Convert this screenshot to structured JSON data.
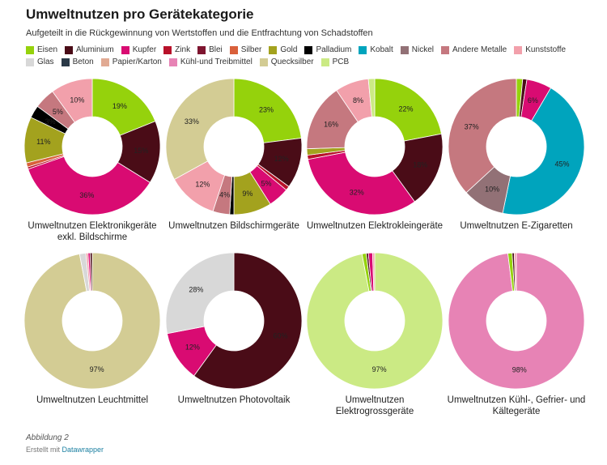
{
  "title": "Umweltnutzen pro Gerätekategorie",
  "subtitle": "Aufgeteilt in die Rückgewinnung von Wertstoffen und die Entfrachtung von Schadstoffen",
  "legend": [
    {
      "name": "Eisen",
      "color": "#95d20c"
    },
    {
      "name": "Aluminium",
      "color": "#4a0c17"
    },
    {
      "name": "Kupfer",
      "color": "#d90b72"
    },
    {
      "name": "Zink",
      "color": "#b8112a"
    },
    {
      "name": "Blei",
      "color": "#7e1530"
    },
    {
      "name": "Silber",
      "color": "#d9603b"
    },
    {
      "name": "Gold",
      "color": "#a3a21e"
    },
    {
      "name": "Palladium",
      "color": "#000000"
    },
    {
      "name": "Kobalt",
      "color": "#00a4bd"
    },
    {
      "name": "Nickel",
      "color": "#927176"
    },
    {
      "name": "Andere Metalle",
      "color": "#c5787f"
    },
    {
      "name": "Kunststoffe",
      "color": "#f2a0ab"
    },
    {
      "name": "Glas",
      "color": "#d8d8d8"
    },
    {
      "name": "Beton",
      "color": "#2a3947"
    },
    {
      "name": "Papier/Karton",
      "color": "#e1aa93"
    },
    {
      "name": "Kühl-und Treibmittel",
      "color": "#e783b5"
    },
    {
      "name": "Quecksilber",
      "color": "#d3cc94"
    },
    {
      "name": "PCB",
      "color": "#cbea84"
    }
  ],
  "chart_data": [
    {
      "type": "pie",
      "title": "Umweltnutzen Elektronikgeräte exkl. Bildschirme",
      "slices": [
        {
          "category": "Eisen",
          "value": 19,
          "label": "19%"
        },
        {
          "category": "Aluminium",
          "value": 15,
          "label": "15%"
        },
        {
          "category": "Kupfer",
          "value": 36,
          "label": "36%"
        },
        {
          "category": "Zink",
          "value": 0.5,
          "label": ""
        },
        {
          "category": "Silber",
          "value": 1,
          "label": ""
        },
        {
          "category": "Gold",
          "value": 11,
          "label": "11%"
        },
        {
          "category": "Palladium",
          "value": 3,
          "label": "3%"
        },
        {
          "category": "Andere Metalle",
          "value": 5,
          "label": "5%"
        },
        {
          "category": "Kunststoffe",
          "value": 10,
          "label": "10%"
        }
      ]
    },
    {
      "type": "pie",
      "title": "Umweltnutzen Bildschirmgeräte",
      "slices": [
        {
          "category": "Eisen",
          "value": 23,
          "label": "23%"
        },
        {
          "category": "Aluminium",
          "value": 12,
          "label": "12%"
        },
        {
          "category": "Zink",
          "value": 1,
          "label": ""
        },
        {
          "category": "Kupfer",
          "value": 5,
          "label": "5%"
        },
        {
          "category": "Gold",
          "value": 9,
          "label": "9%"
        },
        {
          "category": "Palladium",
          "value": 1,
          "label": ""
        },
        {
          "category": "Andere Metalle",
          "value": 4,
          "label": "4%"
        },
        {
          "category": "Kunststoffe",
          "value": 12,
          "label": "12%"
        },
        {
          "category": "Quecksilber",
          "value": 33,
          "label": "33%"
        }
      ]
    },
    {
      "type": "pie",
      "title": "Umweltnutzen Elektrokleingeräte",
      "slices": [
        {
          "category": "Eisen",
          "value": 22,
          "label": "22%"
        },
        {
          "category": "Aluminium",
          "value": 18,
          "label": "18%"
        },
        {
          "category": "Kupfer",
          "value": 32,
          "label": "32%"
        },
        {
          "category": "Zink",
          "value": 1,
          "label": ""
        },
        {
          "category": "Gold",
          "value": 1.5,
          "label": ""
        },
        {
          "category": "Andere Metalle",
          "value": 16,
          "label": "16%"
        },
        {
          "category": "Kunststoffe",
          "value": 8,
          "label": "8%"
        },
        {
          "category": "PCB",
          "value": 1.5,
          "label": ""
        }
      ]
    },
    {
      "type": "pie",
      "title": "Umweltnutzen E-Zigaretten",
      "slices": [
        {
          "category": "Eisen",
          "value": 1.5,
          "label": ""
        },
        {
          "category": "Aluminium",
          "value": 1,
          "label": ""
        },
        {
          "category": "Kupfer",
          "value": 6,
          "label": "6%"
        },
        {
          "category": "Kobalt",
          "value": 45,
          "label": "45%"
        },
        {
          "category": "Nickel",
          "value": 10,
          "label": "10%"
        },
        {
          "category": "Andere Metalle",
          "value": 37,
          "label": "37%"
        }
      ]
    },
    {
      "type": "pie",
      "title": "Umweltnutzen Leuchtmittel",
      "slices": [
        {
          "category": "Quecksilber",
          "value": 97,
          "label": "97%"
        },
        {
          "category": "Glas",
          "value": 1.5,
          "label": ""
        },
        {
          "category": "Kunststoffe",
          "value": 0.5,
          "label": ""
        },
        {
          "category": "Kupfer",
          "value": 0.5,
          "label": ""
        },
        {
          "category": "Aluminium",
          "value": 0.5,
          "label": ""
        }
      ]
    },
    {
      "type": "pie",
      "title": "Umweltnutzen Photovoltaik",
      "slices": [
        {
          "category": "Aluminium",
          "value": 60,
          "label": "60%"
        },
        {
          "category": "Kupfer",
          "value": 12,
          "label": "12%"
        },
        {
          "category": "Glas",
          "value": 28,
          "label": "28%"
        }
      ]
    },
    {
      "type": "pie",
      "title": "Umweltnutzen Elektrogrossgeräte",
      "slices": [
        {
          "category": "PCB",
          "value": 97,
          "label": "97%"
        },
        {
          "category": "Eisen",
          "value": 1,
          "label": ""
        },
        {
          "category": "Aluminium",
          "value": 0.5,
          "label": ""
        },
        {
          "category": "Kupfer",
          "value": 1,
          "label": ""
        },
        {
          "category": "Kunststoffe",
          "value": 0.5,
          "label": ""
        }
      ]
    },
    {
      "type": "pie",
      "title": "Umweltnutzen Kühl-, Gefrier- und Kältegeräte",
      "slices": [
        {
          "category": "Kühl-und Treibmittel",
          "value": 98,
          "label": "98%"
        },
        {
          "category": "Eisen",
          "value": 1,
          "label": ""
        },
        {
          "category": "Aluminium",
          "value": 0.5,
          "label": ""
        },
        {
          "category": "Kunststoffe",
          "value": 0.5,
          "label": ""
        }
      ]
    }
  ],
  "footer": {
    "note": "Abbildung 2",
    "credit_prefix": "Erstellt mit ",
    "credit_link": "Datawrapper"
  }
}
